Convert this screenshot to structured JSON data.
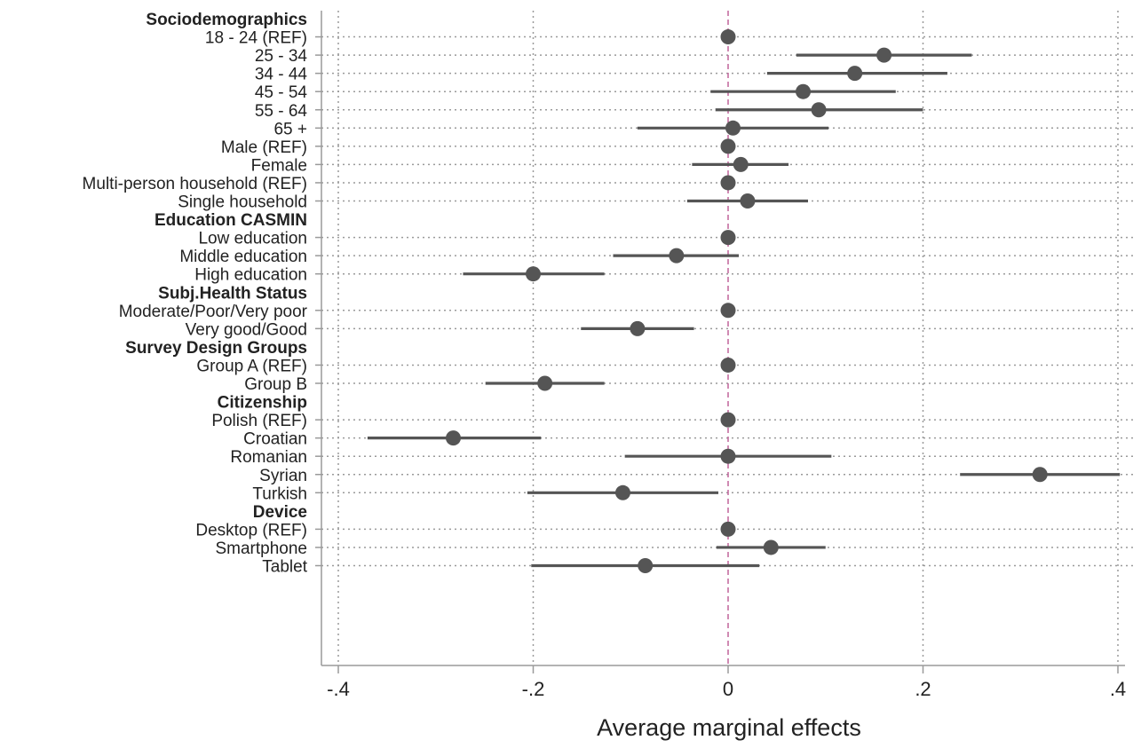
{
  "chart_data": {
    "type": "scatter",
    "title": "",
    "xlabel": "Average marginal effects",
    "ylabel": "",
    "xlim": [
      -0.4,
      0.4
    ],
    "xticks": [
      -0.4,
      -0.2,
      0,
      0.2,
      0.4
    ],
    "xtick_labels": [
      "-.4",
      "-.2",
      "0",
      ".2",
      ".4"
    ],
    "grid": true,
    "reference_line": 0,
    "rows": [
      {
        "label": "Sociodemographics",
        "header": true
      },
      {
        "label": "18 - 24 (REF)",
        "est": 0,
        "lo": 0,
        "hi": 0
      },
      {
        "label": "25 - 34",
        "est": 0.16,
        "lo": 0.07,
        "hi": 0.25
      },
      {
        "label": "34 - 44",
        "est": 0.13,
        "lo": 0.04,
        "hi": 0.225
      },
      {
        "label": "45 - 54",
        "est": 0.077,
        "lo": -0.018,
        "hi": 0.172
      },
      {
        "label": "55 - 64",
        "est": 0.093,
        "lo": -0.013,
        "hi": 0.2
      },
      {
        "label": "65 +",
        "est": 0.005,
        "lo": -0.093,
        "hi": 0.103
      },
      {
        "label": "Male (REF)",
        "est": 0,
        "lo": 0,
        "hi": 0
      },
      {
        "label": "Female",
        "est": 0.013,
        "lo": -0.037,
        "hi": 0.062
      },
      {
        "label": "Multi-person household (REF)",
        "est": 0,
        "lo": 0,
        "hi": 0
      },
      {
        "label": "Single household",
        "est": 0.02,
        "lo": -0.042,
        "hi": 0.082
      },
      {
        "label": "Education CASMIN",
        "header": true
      },
      {
        "label": "Low education",
        "est": 0,
        "lo": 0,
        "hi": 0
      },
      {
        "label": "Middle education",
        "est": -0.053,
        "lo": -0.118,
        "hi": 0.011
      },
      {
        "label": "High education",
        "est": -0.2,
        "lo": -0.272,
        "hi": -0.127
      },
      {
        "label": "Subj.Health Status",
        "header": true
      },
      {
        "label": "Moderate/Poor/Very poor",
        "est": 0,
        "lo": 0,
        "hi": 0
      },
      {
        "label": "Very good/Good",
        "est": -0.093,
        "lo": -0.151,
        "hi": -0.035
      },
      {
        "label": "Survey Design Groups",
        "header": true
      },
      {
        "label": "Group A (REF)",
        "est": 0,
        "lo": 0,
        "hi": 0
      },
      {
        "label": "Group B",
        "est": -0.188,
        "lo": -0.249,
        "hi": -0.127
      },
      {
        "label": "Citizenship",
        "header": true
      },
      {
        "label": "Polish (REF)",
        "est": 0,
        "lo": 0,
        "hi": 0
      },
      {
        "label": "Croatian",
        "est": -0.282,
        "lo": -0.37,
        "hi": -0.192
      },
      {
        "label": "Romanian",
        "est": 0,
        "lo": -0.106,
        "hi": 0.106
      },
      {
        "label": "Syrian",
        "est": 0.32,
        "lo": 0.238,
        "hi": 0.402
      },
      {
        "label": "Turkish",
        "est": -0.108,
        "lo": -0.206,
        "hi": -0.01
      },
      {
        "label": "Device",
        "header": true
      },
      {
        "label": "Desktop (REF)",
        "est": 0,
        "lo": 0,
        "hi": 0
      },
      {
        "label": "Smartphone",
        "est": 0.044,
        "lo": -0.012,
        "hi": 0.1
      },
      {
        "label": "Tablet",
        "est": -0.085,
        "lo": -0.202,
        "hi": 0.032
      }
    ],
    "colors": {
      "marker": "#555555",
      "ci_line": "#555555",
      "grid": "#9a9a9a",
      "reference_line": "#c0639a",
      "axis": "#9a9a9a",
      "text": "#222222"
    }
  }
}
